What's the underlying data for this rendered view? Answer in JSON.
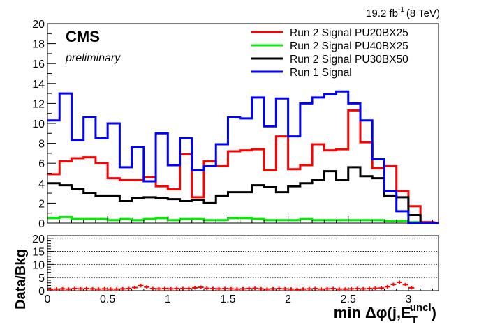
{
  "lumi": {
    "value": "19.2 fb",
    "exp": "-1",
    "energy": "(8 TeV)"
  },
  "cms_label": "CMS",
  "cms_sub": "preliminary",
  "x_title": {
    "main": "min  Δφ(j,E",
    "sub": "T",
    "sup": "uncl",
    "close": ")"
  },
  "ratio_ylabel": "Data/Bkg",
  "chart_data": [
    {
      "type": "line",
      "panel": "main",
      "x_edges": [
        0,
        0.1,
        0.2,
        0.3,
        0.4,
        0.5,
        0.6,
        0.7,
        0.8,
        0.9,
        1.0,
        1.1,
        1.2,
        1.3,
        1.4,
        1.5,
        1.6,
        1.7,
        1.8,
        1.9,
        2.0,
        2.1,
        2.2,
        2.3,
        2.4,
        2.5,
        2.6,
        2.7,
        2.8,
        2.9,
        3.0,
        3.1,
        3.2
      ],
      "xlim": [
        0,
        3.25
      ],
      "ylim": [
        0,
        20
      ],
      "x_ticks": [
        0,
        0.5,
        1,
        1.5,
        2,
        2.5,
        3
      ],
      "x_tick_labels": [
        "0",
        "0.5",
        "1",
        "1.5",
        "2",
        "2.5",
        "3"
      ],
      "y_ticks": [
        0,
        2,
        4,
        6,
        8,
        10,
        12,
        14,
        16,
        18,
        20
      ],
      "y_tick_labels": [
        "0",
        "2",
        "4",
        "6",
        "8",
        "10",
        "12",
        "14",
        "16",
        "18",
        "20"
      ],
      "legend_position": "top-right",
      "series": [
        {
          "name": "Run 2 Signal PU20BX25",
          "color": "#ff0000",
          "values": [
            4.9,
            6.2,
            6.5,
            6.6,
            6.0,
            4.5,
            4.3,
            4.3,
            4.6,
            3.7,
            3.4,
            6.9,
            2.6,
            6.2,
            5.7,
            7.2,
            7.3,
            7.4,
            5.3,
            8.7,
            5.4,
            5.8,
            7.9,
            7.3,
            7.4,
            11.3,
            8.1,
            5.5,
            5.7,
            3.2,
            1.7,
            0.1
          ]
        },
        {
          "name": "Run 2 Signal PU40BX25",
          "color": "#00ee00",
          "values": [
            0.5,
            0.6,
            0.4,
            0.4,
            0.4,
            0.3,
            0.4,
            0.3,
            0.4,
            0.5,
            0.3,
            0.4,
            0.4,
            0.3,
            0.3,
            0.5,
            0.5,
            0.4,
            0.3,
            0.3,
            0.3,
            0.4,
            0.3,
            0.3,
            0.3,
            0.3,
            0.3,
            0.3,
            0.2,
            0.2,
            0.1,
            0.0
          ]
        },
        {
          "name": "Run 2 Signal PU30BX50",
          "color": "#000000",
          "values": [
            4.0,
            3.8,
            3.4,
            3.0,
            2.7,
            2.7,
            2.2,
            2.5,
            2.6,
            2.5,
            2.4,
            2.2,
            2.3,
            2.0,
            2.7,
            3.1,
            3.1,
            3.8,
            3.6,
            3.1,
            3.7,
            4.0,
            4.3,
            5.2,
            4.3,
            5.6,
            4.7,
            4.5,
            2.7,
            2.6,
            0.8,
            0.0
          ]
        },
        {
          "name": "Run 1 Signal",
          "color": "#0000ff",
          "values": [
            10.3,
            13.0,
            8.3,
            10.6,
            8.5,
            10.0,
            5.6,
            7.6,
            4.2,
            9.0,
            5.8,
            8.5,
            5.3,
            5.7,
            7.9,
            10.6,
            10.5,
            12.6,
            9.7,
            12.5,
            8.7,
            12.0,
            12.6,
            12.9,
            13.2,
            12.0,
            10.3,
            6.4,
            3.2,
            1.2,
            0.0,
            0.0
          ]
        }
      ]
    },
    {
      "type": "scatter",
      "panel": "ratio",
      "ylabel": "Data/Bkg",
      "xlim": [
        0,
        3.25
      ],
      "ylim": [
        0,
        21
      ],
      "y_ticks": [
        0,
        5,
        10,
        15,
        20
      ],
      "y_tick_labels": [
        "0",
        "5",
        "10",
        "15",
        "20"
      ],
      "grid": true,
      "series": [
        {
          "color": "#ff0000",
          "x": [
            0.025,
            0.075,
            0.125,
            0.175,
            0.225,
            0.275,
            0.325,
            0.375,
            0.425,
            0.475,
            0.525,
            0.575,
            0.625,
            0.675,
            0.725,
            0.775,
            0.825,
            0.875,
            0.925,
            0.975,
            1.025,
            1.075,
            1.125,
            1.175,
            1.225,
            1.275,
            1.325,
            1.375,
            1.425,
            1.475,
            1.525,
            1.575,
            1.625,
            1.675,
            1.725,
            1.775,
            1.825,
            1.875,
            1.925,
            1.975,
            2.025,
            2.075,
            2.125,
            2.175,
            2.225,
            2.275,
            2.325,
            2.375,
            2.425,
            2.475,
            2.525,
            2.575,
            2.625,
            2.675,
            2.725,
            2.775,
            2.825,
            2.875,
            2.925,
            2.975,
            3.025
          ],
          "y": [
            0.5,
            0.6,
            0.7,
            0.6,
            0.8,
            0.7,
            0.8,
            0.7,
            0.6,
            0.7,
            0.6,
            0.6,
            0.7,
            0.8,
            1.2,
            1.9,
            1.4,
            0.8,
            0.7,
            0.8,
            0.7,
            0.8,
            0.8,
            0.8,
            1.1,
            1.3,
            0.9,
            0.8,
            0.7,
            0.8,
            0.7,
            0.6,
            0.7,
            0.8,
            0.9,
            0.7,
            0.6,
            0.7,
            0.8,
            0.7,
            0.6,
            0.5,
            0.6,
            0.7,
            0.8,
            0.6,
            0.7,
            0.8,
            0.6,
            0.6,
            0.7,
            0.8,
            0.7,
            0.8,
            0.9,
            1.0,
            1.5,
            2.4,
            3.2,
            2.3,
            1.1
          ]
        }
      ]
    }
  ]
}
